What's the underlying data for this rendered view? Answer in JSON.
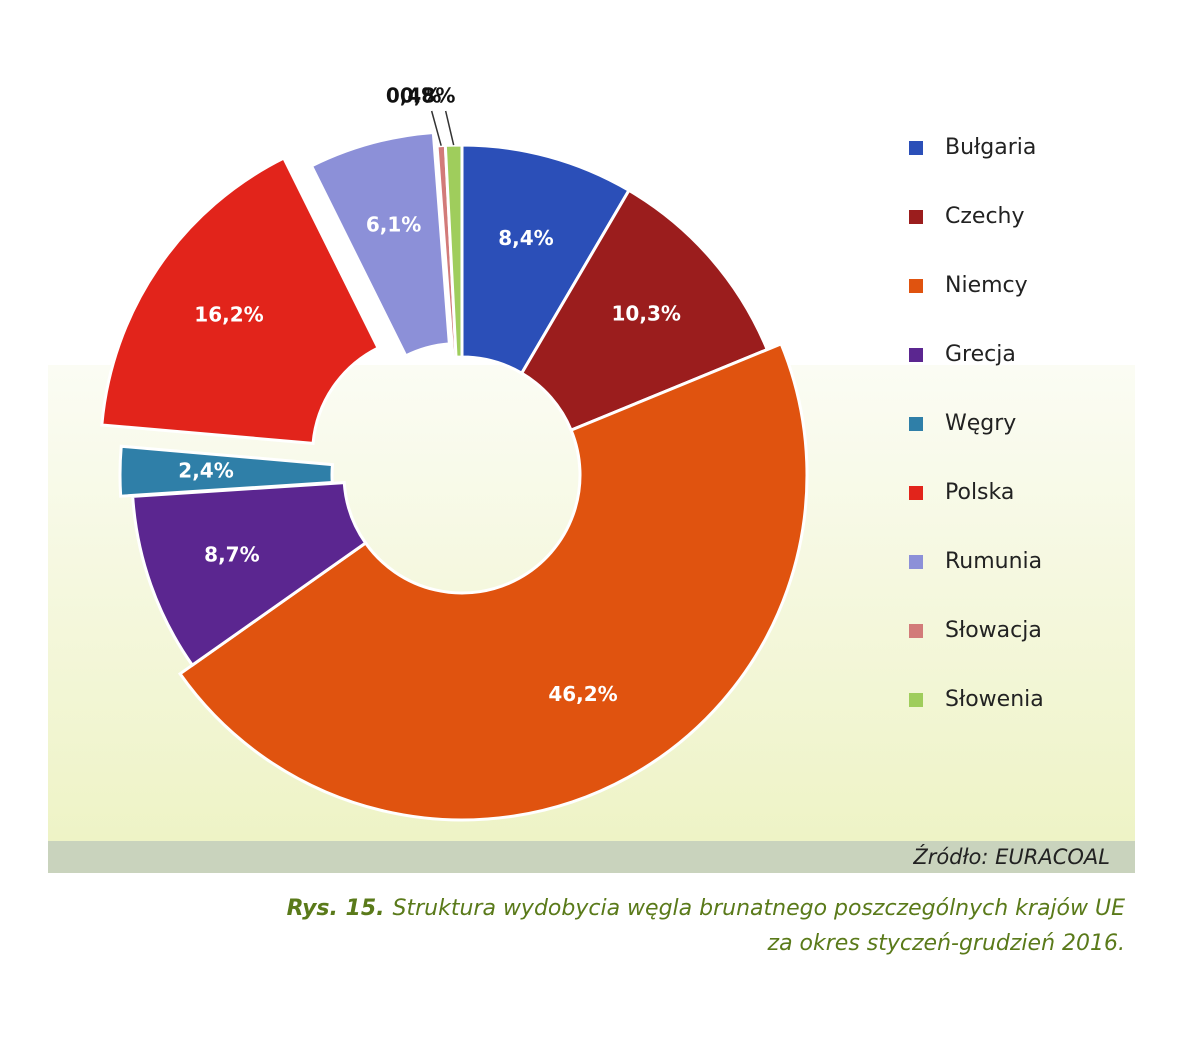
{
  "chart_data": {
    "type": "donut",
    "categories": [
      "Bułgaria",
      "Czechy",
      "Niemcy",
      "Grecja",
      "Węgry",
      "Polska",
      "Rumunia",
      "Słowacja",
      "Słowenia"
    ],
    "values": [
      8.4,
      10.3,
      46.2,
      8.7,
      2.4,
      16.2,
      6.1,
      0.4,
      0.8
    ],
    "value_labels": [
      "8,4%",
      "10,3%",
      "46,2%",
      "8,7%",
      "2,4%",
      "16,2%",
      "6,1%",
      "0,4%",
      "0,8%"
    ],
    "colors": [
      "#2b4fb8",
      "#9b1d1d",
      "#e0530f",
      "#5b2690",
      "#2f7fa8",
      "#e2241b",
      "#8c90d8",
      "#d27b79",
      "#9fcd5c"
    ],
    "legend": "right",
    "source": "Źródło: EURACOAL",
    "caption": {
      "label": "Rys. 15.",
      "lines": [
        "Struktura wydobycia węgla brunatnego poszczególnych krajów UE",
        "za okres styczeń-grudzień 2016."
      ]
    }
  }
}
